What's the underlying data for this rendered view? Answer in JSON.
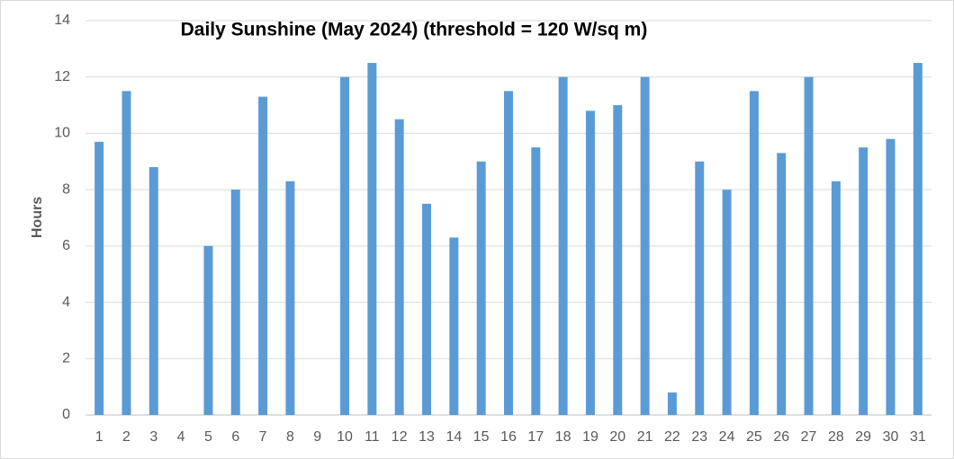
{
  "chart_data": {
    "type": "bar",
    "title": "Daily Sunshine (May 2024) (threshold = 120 W/sq m)",
    "y_label": "Hours",
    "categories": [
      "1",
      "2",
      "3",
      "4",
      "5",
      "6",
      "7",
      "8",
      "9",
      "10",
      "11",
      "12",
      "13",
      "14",
      "15",
      "16",
      "17",
      "18",
      "19",
      "20",
      "21",
      "22",
      "23",
      "24",
      "25",
      "26",
      "27",
      "28",
      "29",
      "30",
      "31"
    ],
    "values": [
      9.7,
      11.5,
      8.8,
      0,
      6.0,
      8.0,
      11.3,
      8.3,
      0,
      12.0,
      12.5,
      10.5,
      7.5,
      6.3,
      9.0,
      11.5,
      9.5,
      12.0,
      10.8,
      11.0,
      12.0,
      0.8,
      9.0,
      8.0,
      11.5,
      9.3,
      12.0,
      8.3,
      9.5,
      9.8,
      12.5
    ],
    "color": "#5b9bd5",
    "ylim": [
      0,
      14
    ],
    "yticks": [
      0,
      2,
      4,
      6,
      8,
      10,
      12,
      14
    ],
    "grid": true
  }
}
